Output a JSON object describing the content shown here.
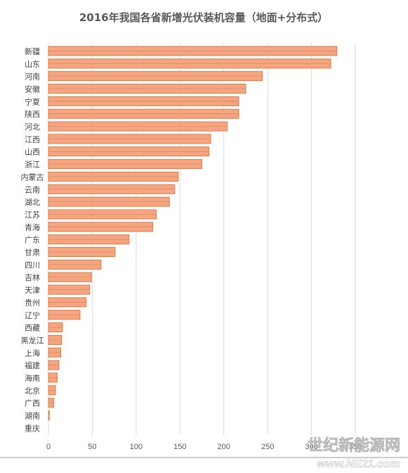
{
  "chart_data": {
    "type": "bar",
    "orientation": "horizontal",
    "title": "2016年我国各省新增光伏装机容量（地面+分布式）",
    "xlim": [
      0,
      350
    ],
    "x_ticks": [
      "0",
      "50",
      "100",
      "150",
      "200",
      "250",
      "300",
      "350"
    ],
    "grid": true,
    "categories": [
      "新疆",
      "山东",
      "河南",
      "安徽",
      "宁夏",
      "陕西",
      "河北",
      "江西",
      "山西",
      "浙江",
      "内蒙古",
      "云南",
      "湖北",
      "江苏",
      "青海",
      "广东",
      "甘肃",
      "四川",
      "吉林",
      "天津",
      "贵州",
      "辽宁",
      "西藏",
      "黑龙江",
      "上海",
      "福建",
      "海南",
      "北京",
      "广西",
      "湖南",
      "重庆"
    ],
    "values": [
      329,
      322,
      244,
      225,
      217,
      217,
      204,
      185,
      183,
      175,
      148,
      144,
      138,
      123,
      119,
      92,
      76,
      60,
      49,
      47,
      43,
      36,
      16,
      15,
      14,
      12,
      10,
      8,
      6,
      1,
      0
    ],
    "bar_color": "#f4a582",
    "bar_edge_color": "#e07a40"
  },
  "watermark": {
    "main": "世纪新能源网",
    "sub": "www.NE21.com"
  }
}
